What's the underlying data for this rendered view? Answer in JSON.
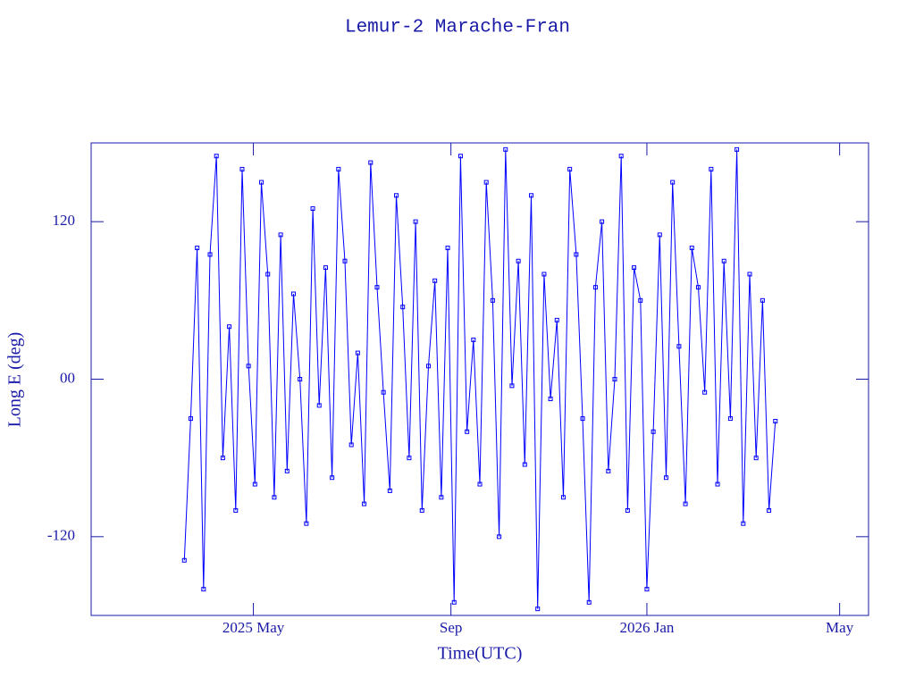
{
  "chart_data": {
    "type": "line",
    "title": "Lemur-2 Marache-Fran",
    "xlabel": "Time(UTC)",
    "ylabel": "Long E (deg)",
    "color": "#0000ff",
    "markers": true,
    "xlim": [
      "2025-01-20",
      "2026-05-19"
    ],
    "xticks": [
      {
        "value": "2025-05-01",
        "label": "2025 May"
      },
      {
        "value": "2025-09-01",
        "label": "Sep"
      },
      {
        "value": "2026-01-01",
        "label": "2026 Jan"
      },
      {
        "value": "2026-05-01",
        "label": "May"
      }
    ],
    "ylim": [
      -180,
      180
    ],
    "yticks": [
      -120,
      {
        "value": 0,
        "label": "00"
      },
      120
    ],
    "x": [
      "2025-03-19",
      "2025-03-23",
      "2025-03-27",
      "2025-03-31",
      "2025-04-04",
      "2025-04-08",
      "2025-04-12",
      "2025-04-16",
      "2025-04-20",
      "2025-04-24",
      "2025-04-28",
      "2025-05-02",
      "2025-05-06",
      "2025-05-10",
      "2025-05-14",
      "2025-05-18",
      "2025-05-22",
      "2025-05-26",
      "2025-05-30",
      "2025-06-03",
      "2025-06-07",
      "2025-06-11",
      "2025-06-15",
      "2025-06-19",
      "2025-06-23",
      "2025-06-27",
      "2025-07-01",
      "2025-07-05",
      "2025-07-09",
      "2025-07-13",
      "2025-07-17",
      "2025-07-21",
      "2025-07-25",
      "2025-07-29",
      "2025-08-02",
      "2025-08-06",
      "2025-08-10",
      "2025-08-14",
      "2025-08-18",
      "2025-08-22",
      "2025-08-26",
      "2025-08-30",
      "2025-09-03",
      "2025-09-07",
      "2025-09-11",
      "2025-09-15",
      "2025-09-19",
      "2025-09-23",
      "2025-09-27",
      "2025-10-01",
      "2025-10-05",
      "2025-10-09",
      "2025-10-13",
      "2025-10-17",
      "2025-10-21",
      "2025-10-25",
      "2025-10-29",
      "2025-11-02",
      "2025-11-06",
      "2025-11-10",
      "2025-11-14",
      "2025-11-18",
      "2025-11-22",
      "2025-11-26",
      "2025-11-30",
      "2025-12-04",
      "2025-12-08",
      "2025-12-12",
      "2025-12-16",
      "2025-12-20",
      "2025-12-24",
      "2025-12-28",
      "2026-01-01",
      "2026-01-05",
      "2026-01-09",
      "2026-01-13",
      "2026-01-17",
      "2026-01-21",
      "2026-01-25",
      "2026-01-29",
      "2026-02-02",
      "2026-02-06",
      "2026-02-10",
      "2026-02-14",
      "2026-02-18",
      "2026-02-22",
      "2026-02-26",
      "2026-03-02",
      "2026-03-06",
      "2026-03-10",
      "2026-03-14",
      "2026-03-18",
      "2026-03-22"
    ],
    "values": [
      -138,
      -30,
      100,
      -160,
      95,
      170,
      -60,
      40,
      -100,
      160,
      10,
      -80,
      150,
      80,
      -90,
      110,
      -70,
      65,
      0,
      -110,
      130,
      -20,
      85,
      -75,
      160,
      90,
      -50,
      20,
      -95,
      165,
      70,
      -10,
      -85,
      140,
      55,
      -60,
      120,
      -100,
      10,
      75,
      -90,
      100,
      -170,
      170,
      -40,
      30,
      -80,
      150,
      60,
      -120,
      175,
      -5,
      90,
      -65,
      140,
      -175,
      80,
      -15,
      45,
      -90,
      160,
      95,
      -30,
      -170,
      70,
      120,
      -70,
      0,
      170,
      -100,
      85,
      60,
      -160,
      -40,
      110,
      -75,
      150,
      25,
      -95,
      100,
      70,
      -10,
      160,
      -80,
      90,
      -30,
      175,
      -110,
      80,
      -60,
      60,
      -100,
      -32
    ]
  }
}
